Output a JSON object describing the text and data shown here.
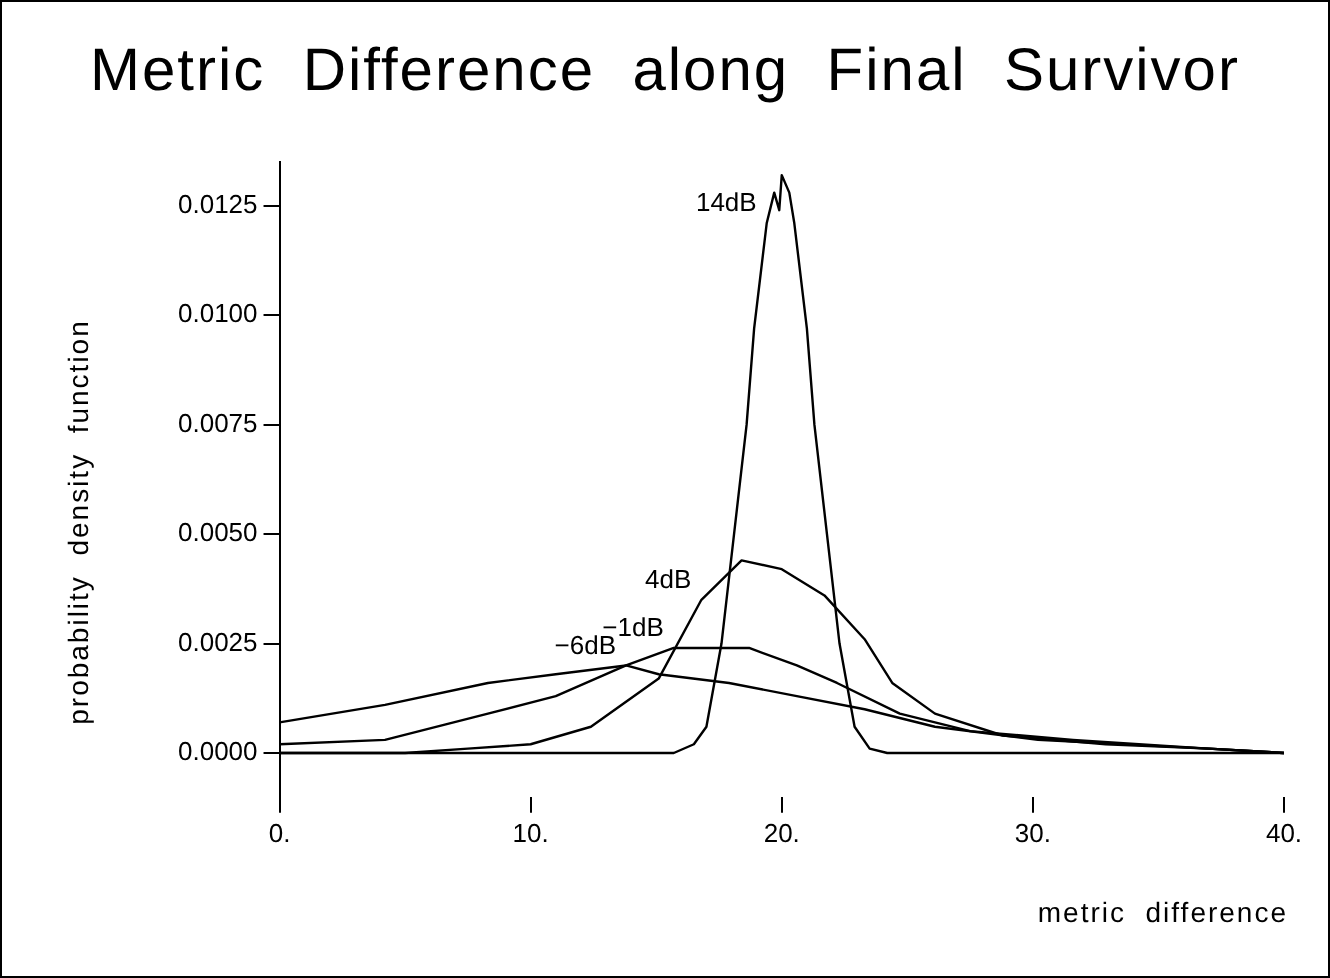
{
  "chart_data": {
    "type": "line",
    "title": "Metric  Difference  along  Final  Survivor",
    "xlabel": "metric  difference",
    "ylabel": "probability  density  function",
    "xlim": [
      0,
      40
    ],
    "ylim": [
      -0.001,
      0.0135
    ],
    "xticks": [
      {
        "value": 0,
        "label": "0."
      },
      {
        "value": 10,
        "label": "10."
      },
      {
        "value": 20,
        "label": "20."
      },
      {
        "value": 30,
        "label": "30."
      },
      {
        "value": 40,
        "label": "40."
      }
    ],
    "yticks": [
      {
        "value": 0,
        "label": "0.0000"
      },
      {
        "value": 0.0025,
        "label": "0.0025"
      },
      {
        "value": 0.005,
        "label": "0.0050"
      },
      {
        "value": 0.0075,
        "label": "0.0075"
      },
      {
        "value": 0.01,
        "label": "0.0100"
      },
      {
        "value": 0.0125,
        "label": "0.0125"
      }
    ],
    "grid": false,
    "legend": false,
    "marker": "none",
    "line_style": "solid",
    "series": [
      {
        "name": "14dB",
        "color": "#000000",
        "x": [
          0,
          15,
          15.7,
          16.5,
          17,
          17.6,
          18.1,
          18.6,
          18.9,
          19.4,
          19.7,
          19.9,
          20,
          20.3,
          20.5,
          21,
          21.3,
          21.8,
          22.3,
          22.9,
          23.5,
          24.2,
          40
        ],
        "values": [
          0,
          0,
          0,
          0.0002,
          0.0006,
          0.0025,
          0.005,
          0.0075,
          0.0097,
          0.0121,
          0.0128,
          0.0124,
          0.0132,
          0.0128,
          0.0121,
          0.0097,
          0.0075,
          0.005,
          0.0025,
          0.0006,
          0.0001,
          0,
          0
        ]
      },
      {
        "name": "4dB",
        "color": "#000000",
        "x": [
          0,
          5,
          7.5,
          10,
          12.4,
          15.1,
          16.8,
          18.4,
          20,
          21.7,
          23.3,
          24.4,
          26.1,
          28.8,
          32.9,
          37,
          40
        ],
        "values": [
          0,
          0,
          0.0001,
          0.0002,
          0.0006,
          0.0017,
          0.0035,
          0.0044,
          0.0042,
          0.0036,
          0.0026,
          0.0016,
          0.0009,
          0.0004,
          0.0002,
          0.0001,
          0
        ]
      },
      {
        "name": "−1dB",
        "color": "#000000",
        "x": [
          0,
          4.2,
          8.3,
          11,
          13.8,
          15.7,
          18.7,
          20.6,
          22.2,
          24.7,
          27.5,
          31.6,
          37,
          40
        ],
        "values": [
          0.0002,
          0.0003,
          0.0009,
          0.0013,
          0.002,
          0.0024,
          0.0024,
          0.002,
          0.0016,
          0.0009,
          0.0005,
          0.0003,
          0.0001,
          0
        ]
      },
      {
        "name": "−6dB",
        "color": "#000000",
        "x": [
          0,
          4.2,
          8.3,
          11,
          13.8,
          15.1,
          17.9,
          20.6,
          23.3,
          26.1,
          30.2,
          37,
          40
        ],
        "values": [
          0.0007,
          0.0011,
          0.0016,
          0.0018,
          0.002,
          0.0018,
          0.0016,
          0.0013,
          0.001,
          0.0006,
          0.0003,
          0.0001,
          0
        ]
      }
    ]
  }
}
